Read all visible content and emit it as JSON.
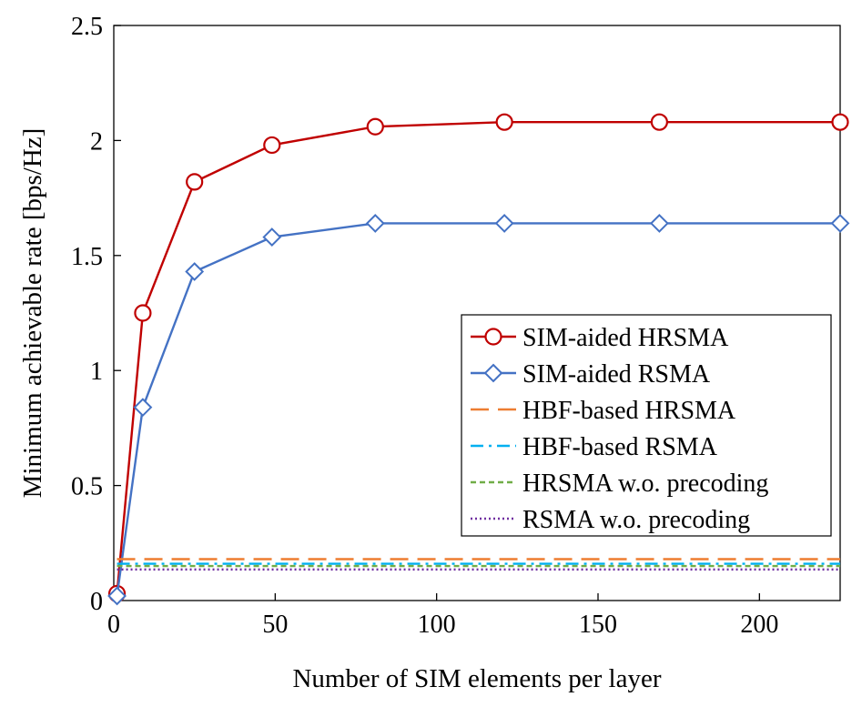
{
  "chart_data": {
    "type": "line",
    "xlabel": "Number of SIM elements per layer",
    "ylabel": "Minimum achievable rate [bps/Hz]",
    "xlim": [
      0,
      225
    ],
    "ylim": [
      0,
      2.5
    ],
    "x_ticks": [
      0,
      50,
      100,
      150,
      200
    ],
    "y_ticks": [
      0,
      0.5,
      1,
      1.5,
      2,
      2.5
    ],
    "x_tick_labels": [
      "0",
      "50",
      "100",
      "150",
      "200"
    ],
    "y_tick_labels": [
      "0",
      "0.5",
      "1",
      "1.5",
      "2",
      "2.5"
    ],
    "legend_position": "center-right",
    "series": [
      {
        "name": "SIM-aided HRSMA",
        "color": "#c00000",
        "style": "solid",
        "marker": "circle",
        "x": [
          1,
          9,
          25,
          49,
          81,
          121,
          169,
          225
        ],
        "y": [
          0.03,
          1.25,
          1.82,
          1.98,
          2.06,
          2.08,
          2.08,
          2.08
        ]
      },
      {
        "name": "SIM-aided RSMA",
        "color": "#4472c4",
        "style": "solid",
        "marker": "diamond",
        "x": [
          1,
          9,
          25,
          49,
          81,
          121,
          169,
          225
        ],
        "y": [
          0.02,
          0.84,
          1.43,
          1.58,
          1.64,
          1.64,
          1.64,
          1.64
        ]
      },
      {
        "name": "HBF-based HRSMA",
        "color": "#ed7d31",
        "style": "dashed",
        "marker": "none",
        "x": [
          1,
          225
        ],
        "y": [
          0.18,
          0.18
        ]
      },
      {
        "name": "HBF-based RSMA",
        "color": "#00b0f0",
        "style": "dashdot",
        "marker": "none",
        "x": [
          1,
          225
        ],
        "y": [
          0.16,
          0.16
        ]
      },
      {
        "name": "HRSMA w.o. precoding",
        "color": "#70ad47",
        "style": "shortdash",
        "marker": "none",
        "x": [
          1,
          225
        ],
        "y": [
          0.15,
          0.15
        ]
      },
      {
        "name": "RSMA w.o. precoding",
        "color": "#7030a0",
        "style": "dotted",
        "marker": "none",
        "x": [
          1,
          225
        ],
        "y": [
          0.135,
          0.135
        ]
      }
    ]
  }
}
